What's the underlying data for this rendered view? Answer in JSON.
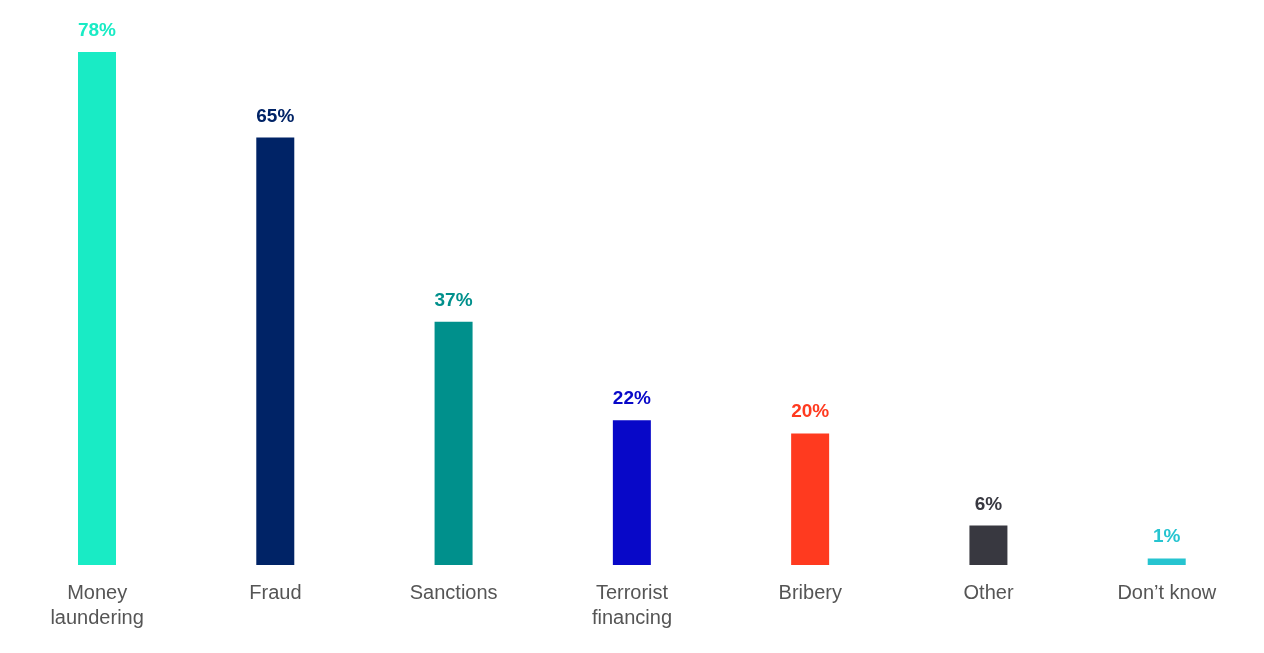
{
  "chart_data": {
    "type": "bar",
    "categories": [
      "Money laundering",
      "Fraud",
      "Sanctions",
      "Terrorist financing",
      "Bribery",
      "Other",
      "Don’t know"
    ],
    "values": [
      78,
      65,
      37,
      22,
      20,
      6,
      1
    ],
    "colors": [
      "#19ebc5",
      "#002366",
      "#00908c",
      "#0808c8",
      "#ff3a1f",
      "#383840",
      "#26c4d0"
    ],
    "value_labels": [
      "78%",
      "65%",
      "37%",
      "22%",
      "20%",
      "6%",
      "1%"
    ],
    "grid": false,
    "legend": false
  }
}
